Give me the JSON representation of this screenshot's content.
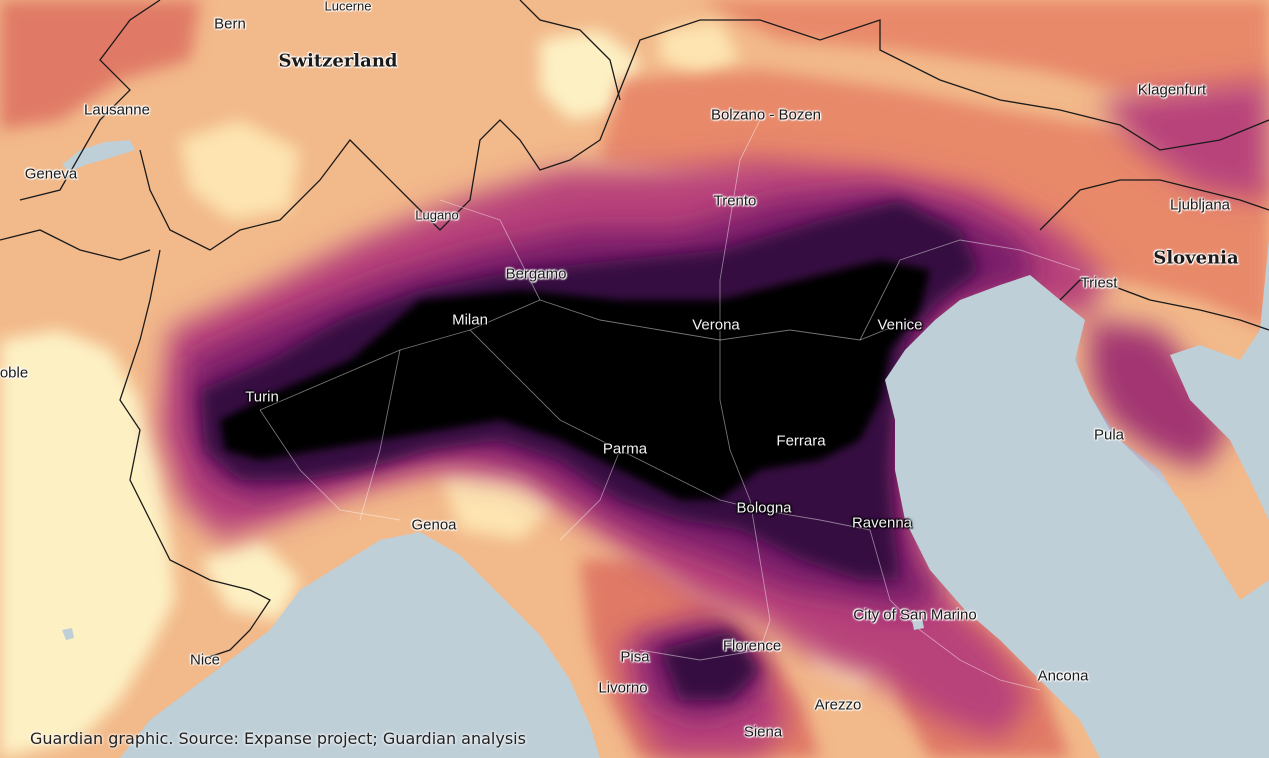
{
  "map": {
    "labels": [
      {
        "text": "Bern"
      },
      {
        "text": "Lucerne"
      },
      {
        "text": "Switzerland"
      },
      {
        "text": "Lausanne"
      },
      {
        "text": "Geneva"
      },
      {
        "text": "Lugano"
      },
      {
        "text": "Bolzano - Bozen"
      },
      {
        "text": "Klagenfurt"
      },
      {
        "text": "Trento"
      },
      {
        "text": "Ljubljana"
      },
      {
        "text": "Slovenia"
      },
      {
        "text": "Bergamo"
      },
      {
        "text": "Triest"
      },
      {
        "text": "Milan"
      },
      {
        "text": "Verona"
      },
      {
        "text": "Venice"
      },
      {
        "text": "oble"
      },
      {
        "text": "Turin"
      },
      {
        "text": "Pula"
      },
      {
        "text": "Ferrara"
      },
      {
        "text": "Parma"
      },
      {
        "text": "Bologna"
      },
      {
        "text": "Genoa"
      },
      {
        "text": "Ravenna"
      },
      {
        "text": "City of San Marino"
      },
      {
        "text": "Pisa"
      },
      {
        "text": "Florence"
      },
      {
        "text": "Nice"
      },
      {
        "text": "Ancona"
      },
      {
        "text": "Livorno"
      },
      {
        "text": "Arezzo"
      },
      {
        "text": "Siena"
      }
    ]
  },
  "source": "Guardian graphic. Source: Expanse project; Guardian analysis",
  "colors": {
    "sea": "#bfcfd8",
    "low": "#fdf1c4",
    "mid_low": "#f6b17e",
    "mid": "#e07a66",
    "mid_high": "#b8427a",
    "high": "#7a1f6a",
    "very_high": "#35093f",
    "max": "#050205"
  }
}
